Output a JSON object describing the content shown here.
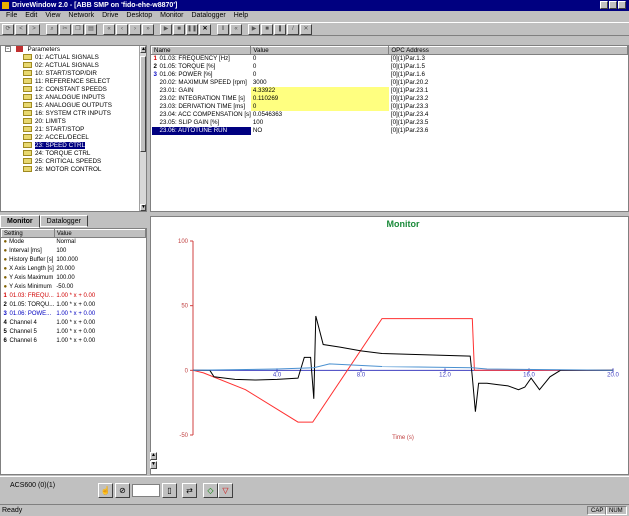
{
  "window": {
    "title": "DriveWindow 2.0 - [ABB SMP on 'fido-ehe-w8870']"
  },
  "menu": [
    "File",
    "Edit",
    "View",
    "Network",
    "Drive",
    "Desktop",
    "Monitor",
    "Datalogger",
    "Help"
  ],
  "tree": {
    "root": "Parameters",
    "items": [
      "01: ACTUAL SIGNALS",
      "02: ACTUAL SIGNALS",
      "10: START/STOP/DIR",
      "11: REFERENCE SELECT",
      "12: CONSTANT SPEEDS",
      "13: ANALOGUE INPUTS",
      "15: ANALOGUE OUTPUTS",
      "16: SYSTEM CTR INPUTS",
      "20: LIMITS",
      "21: START/STOP",
      "22: ACCEL/DECEL",
      "23: SPEED CTRL",
      "24: TORQUE CTRL",
      "25: CRITICAL SPEEDS",
      "26: MOTOR CONTROL"
    ],
    "selected_index": 11
  },
  "params": {
    "headers": [
      "Name",
      "Value",
      "OPC Address"
    ],
    "rows": [
      {
        "num": "1",
        "name": "01.03: FREQUENCY [Hz]",
        "value": "0",
        "opc": "[0](1)Par.1.3",
        "color": "#d00000"
      },
      {
        "num": "2",
        "name": "01.05: TORQUE [%]",
        "value": "0",
        "opc": "[0](1)Par.1.5",
        "color": "#000000"
      },
      {
        "num": "3",
        "name": "01.06: POWER [%]",
        "value": "0",
        "opc": "[0](1)Par.1.6",
        "color": "#0000c0"
      },
      {
        "num": "",
        "name": "20.02: MAXIMUM SPEED [rpm]",
        "value": "3000",
        "opc": "[0](1)Par.20.2",
        "color": "#000000"
      },
      {
        "num": "",
        "name": "23.01: GAIN",
        "value": "4.33922",
        "opc": "[0](1)Par.23.1",
        "color": "#000000",
        "hl": true
      },
      {
        "num": "",
        "name": "23.02: INTEGRATION TIME [s]",
        "value": "0.110269",
        "opc": "[0](1)Par.23.2",
        "color": "#000000",
        "hl": true
      },
      {
        "num": "",
        "name": "23.03: DERIVATION TIME [ms]",
        "value": "0",
        "opc": "[0](1)Par.23.3",
        "color": "#000000",
        "hl": true
      },
      {
        "num": "",
        "name": "23.04: ACC COMPENSATION [s]",
        "value": "0.0546363",
        "opc": "[0](1)Par.23.4",
        "color": "#000000"
      },
      {
        "num": "",
        "name": "23.05: SLIP GAIN [%]",
        "value": "100",
        "opc": "[0](1)Par.23.5",
        "color": "#000000"
      },
      {
        "num": "",
        "name": "23.06: AUTOTUNE RUN",
        "value": "NO",
        "opc": "[0](1)Par.23.6",
        "color": "#000000",
        "sel": true
      }
    ]
  },
  "tabs": [
    "Monitor",
    "Datalogger"
  ],
  "monitor": {
    "headers": [
      "Setting",
      "Value"
    ],
    "rows": [
      {
        "num": "",
        "name": "Mode",
        "value": "Normal",
        "color": "#000000"
      },
      {
        "num": "",
        "name": "Interval [ms]",
        "value": "100",
        "color": "#000000"
      },
      {
        "num": "",
        "name": "History Buffer [s]",
        "value": "100.000",
        "color": "#000000"
      },
      {
        "num": "",
        "name": "X Axis Length [s]",
        "value": "20.000",
        "color": "#000000"
      },
      {
        "num": "",
        "name": "Y Axis Maximum",
        "value": "100.00",
        "color": "#000000"
      },
      {
        "num": "",
        "name": "Y Axis Minimum",
        "value": "-50.00",
        "color": "#000000"
      },
      {
        "num": "1",
        "name": "01.03: FREQU...",
        "value": "1.00 * x + 0.00",
        "color": "#d00000"
      },
      {
        "num": "2",
        "name": "01.05: TORQU...",
        "value": "1.00 * x + 0.00",
        "color": "#000000"
      },
      {
        "num": "3",
        "name": "01.06: POWE...",
        "value": "1.00 * x + 0.00",
        "color": "#0000c0"
      },
      {
        "num": "4",
        "name": "Channel 4",
        "value": "1.00 * x + 0.00",
        "color": "#000000"
      },
      {
        "num": "5",
        "name": "Channel 5",
        "value": "1.00 * x + 0.00",
        "color": "#000000"
      },
      {
        "num": "6",
        "name": "Channel 6",
        "value": "1.00 * x + 0.00",
        "color": "#000000"
      }
    ]
  },
  "chart_data": {
    "type": "line",
    "title": "Monitor",
    "xlabel": "Time (s)",
    "ylabel": "",
    "xlim": [
      0,
      20
    ],
    "ylim": [
      -50,
      100
    ],
    "xticks": [
      "4.0",
      "8.0",
      "12.0",
      "16.0",
      "20.0"
    ],
    "yticks": [
      "100",
      "50",
      "0",
      "-50"
    ],
    "grid": false,
    "series": [
      {
        "name": "01.03: FREQUENCY [Hz]",
        "color": "#ff3030",
        "x": [
          0,
          0.5,
          2.5,
          5.0,
          5.7,
          9.0,
          13.3,
          13.4,
          20.0
        ],
        "y": [
          0,
          -2,
          -15,
          -40,
          -40,
          40,
          40,
          0,
          0
        ]
      },
      {
        "name": "01.05: TORQUE [%]",
        "color": "#000000",
        "x": [
          0,
          0.8,
          1.0,
          2.0,
          3.0,
          4.0,
          5.0,
          5.3,
          5.6,
          5.75,
          5.85,
          6.2,
          7.0,
          8.0,
          9.0,
          11.0,
          13.2,
          13.3,
          13.45,
          13.6,
          14.0,
          14.5,
          15.0,
          15.5,
          15.8,
          16.1,
          16.5,
          17.0,
          17.5,
          18.0,
          19.0,
          20.0
        ],
        "y": [
          0,
          0,
          -5,
          -7,
          -7.5,
          -7,
          -6,
          10,
          10,
          -22,
          42,
          20,
          18,
          15,
          13,
          12,
          11,
          -5,
          -32,
          -10,
          -10,
          -11,
          -12,
          -15,
          -13,
          -6,
          -15,
          -5,
          0,
          0,
          0,
          0
        ]
      },
      {
        "name": "01.06: POWER [%]",
        "color": "#4a90d0",
        "x": [
          0,
          4.0,
          5.75,
          6.5,
          9.0,
          13.3,
          14.0,
          20.0
        ],
        "y": [
          0,
          1,
          2,
          5,
          3,
          2,
          1,
          0
        ]
      }
    ]
  },
  "drive": {
    "label": "ACS600 (0)(1)"
  },
  "status": {
    "text": "Ready",
    "cap": "CAP",
    "num": "NUM"
  }
}
